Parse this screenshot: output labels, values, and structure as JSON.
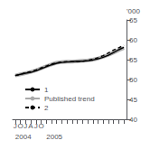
{
  "chart_data": {
    "type": "line",
    "y_label": "'000",
    "categories": [
      "J",
      "O",
      "J",
      "A",
      "J",
      "O",
      null,
      null,
      null,
      null,
      null,
      null,
      null,
      null,
      null,
      null,
      null,
      null,
      null,
      null,
      null,
      null
    ],
    "series": [
      {
        "name": "1",
        "color": "#000000",
        "line_style": "solid",
        "values": [
          51.0,
          51.3,
          51.6,
          51.8,
          52.2,
          52.7,
          53.2,
          53.7,
          54.1,
          54.3,
          54.4,
          54.5,
          54.6,
          54.6,
          54.7,
          54.9,
          55.2,
          55.6,
          56.1,
          56.8,
          57.5,
          58.1
        ]
      },
      {
        "name": "Published trend",
        "color": "#aaaaaa",
        "line_style": "solid",
        "values": [
          51.0,
          51.3,
          51.6,
          51.9,
          52.3,
          52.8,
          53.3,
          53.8,
          54.2,
          54.4,
          54.5,
          54.5,
          54.6,
          54.7,
          54.8,
          55.0,
          55.3,
          55.7,
          56.2,
          56.8,
          57.4,
          57.9
        ]
      },
      {
        "name": "2",
        "color": "#000000",
        "line_style": "dashed",
        "values": [
          51.0,
          51.3,
          51.7,
          52.0,
          52.4,
          52.9,
          53.4,
          53.9,
          54.2,
          54.4,
          54.5,
          54.5,
          54.5,
          54.6,
          54.8,
          55.1,
          55.5,
          56.0,
          56.7,
          57.4,
          58.0,
          58.6
        ]
      }
    ],
    "annotations": [
      {
        "text": "2004",
        "x": 0
      },
      {
        "text": "2005",
        "x": 6
      }
    ],
    "ylim": [
      40,
      65
    ],
    "yticks": [
      40,
      45,
      50,
      55,
      60,
      65
    ],
    "grid": false,
    "legend": "lower left"
  }
}
